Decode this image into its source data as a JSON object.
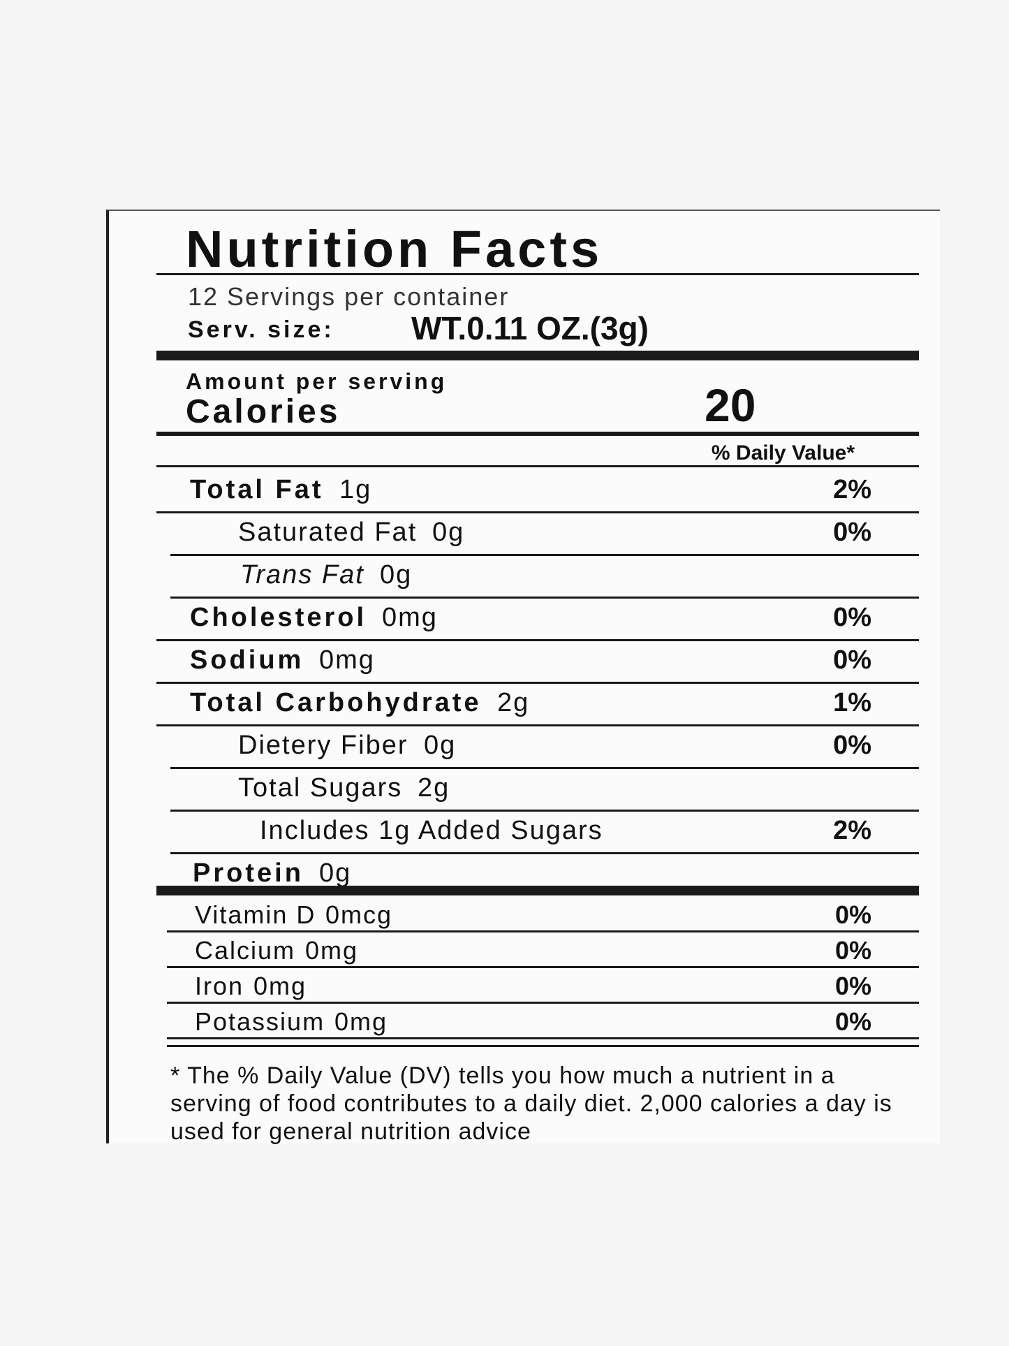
{
  "title": "Nutrition Facts",
  "servings": "12 Servings per container",
  "serving_size": {
    "label": "Serv. size:",
    "value": "WT.0.11 OZ.(3g)"
  },
  "amount_per_serving": "Amount per serving",
  "calories": {
    "label": "Calories",
    "value": "20"
  },
  "dv_header": "% Daily Value*",
  "nutrients": [
    {
      "name": "Total Fat",
      "amount": "1g",
      "dv": "2%"
    },
    {
      "name": "Saturated Fat",
      "amount": "0g",
      "dv": "0%"
    },
    {
      "name": "Trans Fat",
      "amount": "0g"
    },
    {
      "name": "Cholesterol",
      "amount": "0mg",
      "dv": "0%"
    },
    {
      "name": "Sodium",
      "amount": "0mg",
      "dv": "0%"
    },
    {
      "name": "Total Carbohydrate",
      "amount": "2g",
      "dv": "1%"
    },
    {
      "name": "Dietery Fiber",
      "amount": "0g",
      "dv": "0%"
    },
    {
      "name": "Total Sugars",
      "amount": "2g"
    },
    {
      "name": "Includes 1g Added Sugars",
      "dv": "2%"
    },
    {
      "name": "Protein",
      "amount": "0g"
    }
  ],
  "vitamins": [
    {
      "name": "Vitamin D",
      "amount": "0mcg",
      "dv": "0%"
    },
    {
      "name": "Calcium",
      "amount": "0mg",
      "dv": "0%"
    },
    {
      "name": "Iron",
      "amount": "0mg",
      "dv": "0%"
    },
    {
      "name": "Potassium",
      "amount": "0mg",
      "dv": "0%"
    }
  ],
  "footnote": "* The % Daily Value (DV) tells you how much a nutrient in a serving of food contributes to a daily diet. 2,000 calories a day is used for general nutrition advice"
}
